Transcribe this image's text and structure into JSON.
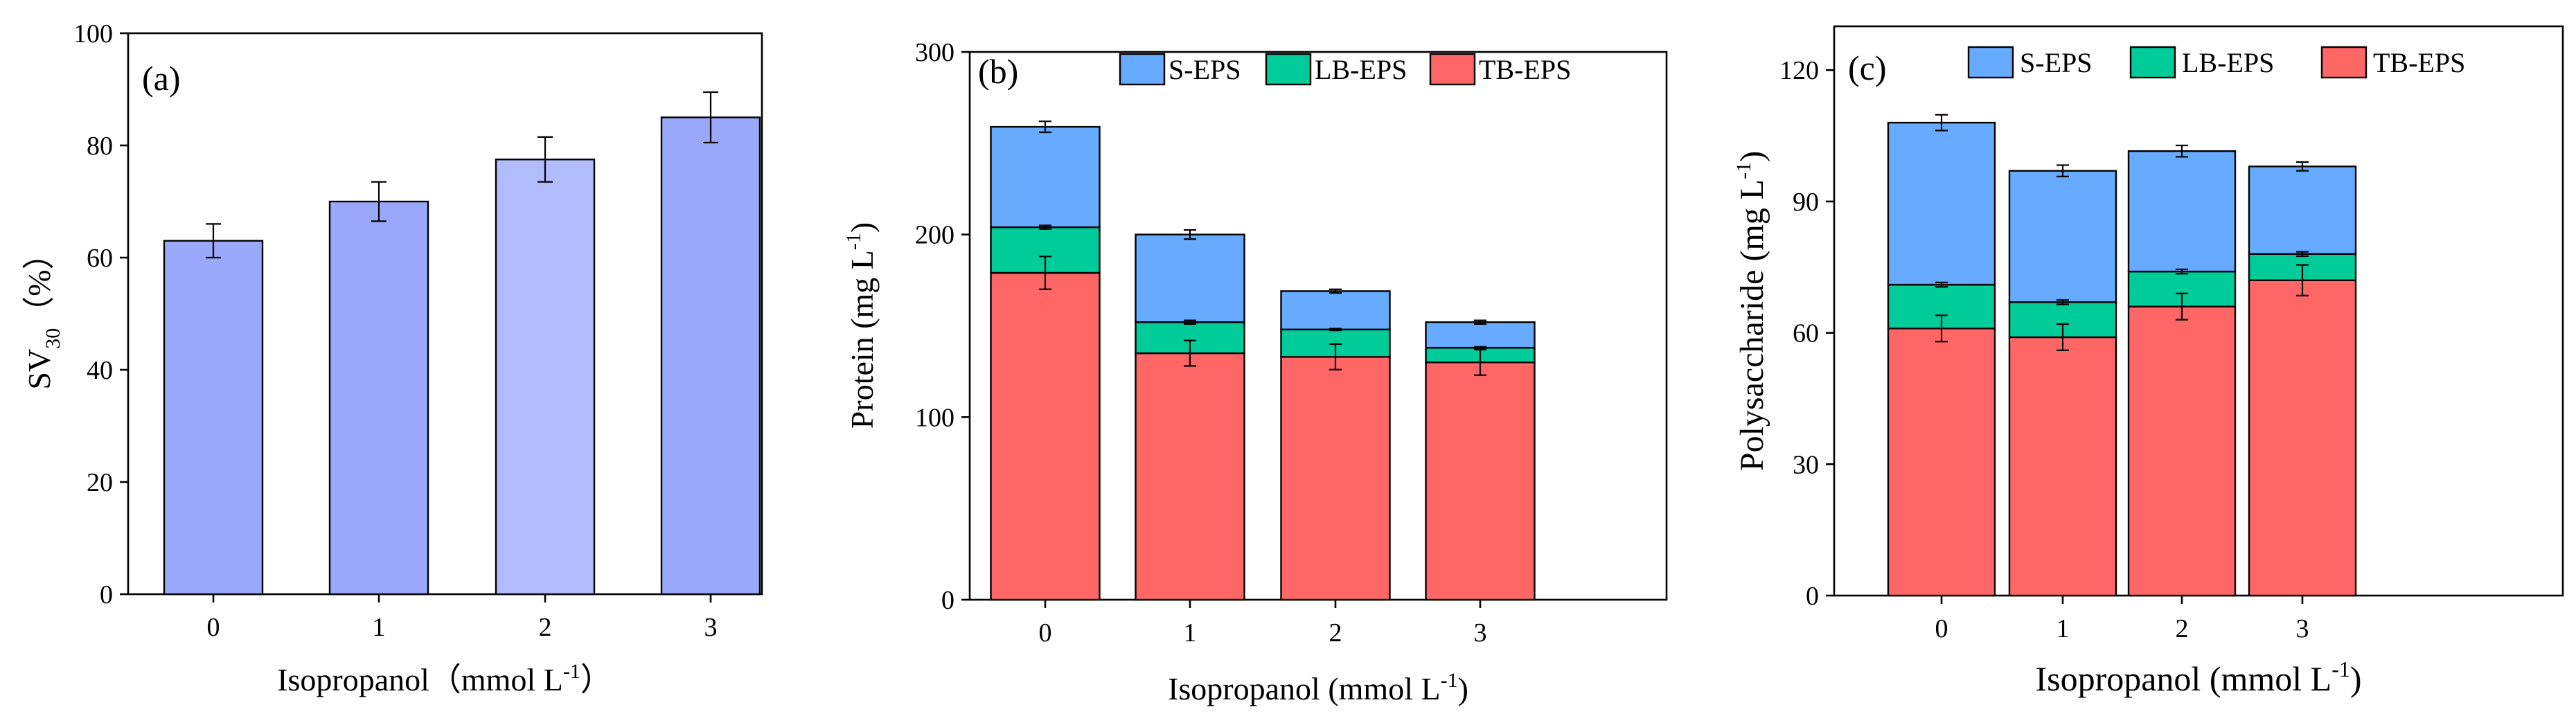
{
  "colors": {
    "sv_bar": "#99A8F8",
    "sv_bar_light": "#B0BCFB",
    "s_eps": "#66ABFF",
    "lb_eps": "#00CC99",
    "tb_eps": "#FF6666"
  },
  "chart_data": [
    {
      "id": "a",
      "type": "bar",
      "panel_label": "(a)",
      "title": "",
      "xlabel": "Isopropanol（mmol L",
      "xlabel_sup": "-1",
      "xlabel_end": "）",
      "ylabel": "SV",
      "ylabel_sub": "30",
      "ylabel_end": "（%）",
      "categories": [
        "0",
        "1",
        "2",
        "3"
      ],
      "values": [
        63,
        70,
        77.5,
        85
      ],
      "errors": [
        3,
        3.5,
        4,
        4.5
      ],
      "ylim": [
        0,
        100
      ],
      "yticks": [
        "0",
        "20",
        "40",
        "60",
        "80",
        "100"
      ]
    },
    {
      "id": "b",
      "type": "bar",
      "stacked": true,
      "panel_label": "(b)",
      "title": "",
      "xlabel": "Isopropanol (mmol L",
      "xlabel_sup": "-1",
      "xlabel_end": ")",
      "ylabel": "Protein (mg L",
      "ylabel_sup": "-1",
      "ylabel_end": ")",
      "categories": [
        "0",
        "1",
        "2",
        "3"
      ],
      "series": [
        {
          "name": "TB-EPS",
          "values": [
            179,
            135,
            133,
            130
          ],
          "errors": [
            9,
            7,
            7,
            7
          ]
        },
        {
          "name": "LB-EPS",
          "values": [
            25,
            17,
            15,
            8
          ],
          "errors": [
            1,
            1,
            0.5,
            0.5
          ]
        },
        {
          "name": "S-EPS",
          "values": [
            55,
            48,
            21,
            14
          ],
          "errors": [
            3,
            2.5,
            1,
            1
          ]
        }
      ],
      "ylim": [
        0,
        300
      ],
      "yticks": [
        "0",
        "100",
        "200",
        "300"
      ],
      "legend": [
        "S-EPS",
        "LB-EPS",
        "TB-EPS"
      ],
      "legend_position": "top"
    },
    {
      "id": "c",
      "type": "bar",
      "stacked": true,
      "panel_label": "(c)",
      "title": "",
      "xlabel": "Isopropanol (mmol L",
      "xlabel_sup": "-1",
      "xlabel_end": ")",
      "ylabel": "Polysaccharide (mg L",
      "ylabel_sup": "-1",
      "ylabel_end": ")",
      "categories": [
        "0",
        "1",
        "2",
        "3"
      ],
      "series": [
        {
          "name": "TB-EPS",
          "values": [
            61,
            59,
            66,
            72
          ],
          "errors": [
            3,
            3,
            3,
            3.5
          ]
        },
        {
          "name": "LB-EPS",
          "values": [
            10,
            8,
            8,
            6
          ],
          "errors": [
            0.5,
            0.5,
            0.5,
            0.5
          ]
        },
        {
          "name": "S-EPS",
          "values": [
            37,
            30,
            27.5,
            20
          ],
          "errors": [
            1.8,
            1.3,
            1.3,
            1
          ]
        }
      ],
      "ylim": [
        0,
        130
      ],
      "yticks": [
        "0",
        "30",
        "60",
        "90",
        "120"
      ],
      "legend": [
        "S-EPS",
        "LB-EPS",
        "TB-EPS"
      ],
      "legend_position": "top"
    }
  ]
}
